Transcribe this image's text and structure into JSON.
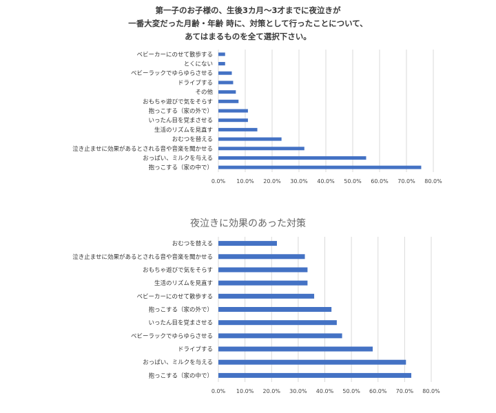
{
  "chart_data": [
    {
      "type": "bar",
      "orientation": "horizontal",
      "title_lines": [
        "第一子のお子様の、生後3カ月〜3才までに夜泣きが",
        "一番大変だった月齢・年齢 時に、対策として行ったことについて、",
        "あてはまるものを全て選択下さい。"
      ],
      "categories": [
        "ベビーカーにのせて散歩する",
        "とくにない",
        "ベビーラックでゆらゆらさせる",
        "ドライブする",
        "その他",
        "おもちゃ遊びで気をそらす",
        "抱っこする（家の外で）",
        "いったん目を覚まさせる",
        "生活のリズムを見直す",
        "おむつを替える",
        "泣き止ませに効果があるとされる音や音楽を聞かせる",
        "おっぱい、ミルクを与える",
        "抱っこする（家の中で）"
      ],
      "values": [
        2.5,
        2.5,
        5.0,
        5.5,
        6.5,
        7.5,
        11.0,
        11.0,
        14.5,
        23.5,
        32.0,
        55.0,
        75.5
      ],
      "xlim": [
        0,
        80
      ],
      "xticks": [
        "0.0%",
        "10.0%",
        "20.0%",
        "30.0%",
        "40.0%",
        "50.0%",
        "60.0%",
        "70.0%",
        "80.0%"
      ],
      "grid": true,
      "bar_color": "#4472C4"
    },
    {
      "type": "bar",
      "orientation": "horizontal",
      "title": "夜泣きに効果のあった対策",
      "categories": [
        "おむつを替える",
        "泣き止ませに効果があるとされる音や音楽を聞かせる",
        "おもちゃ遊びで気をそらす",
        "生活のリズムを見直す",
        "ベビーカーにのせて散歩する",
        "抱っこする（家の外で）",
        "いったん目を覚まさせる",
        "ベビーラックでゆらゆらさせる",
        "ドライブする",
        "おっぱい、ミルクを与える",
        "抱っこする（家の中で）"
      ],
      "values": [
        22.0,
        32.5,
        33.5,
        33.5,
        36.0,
        42.5,
        44.5,
        46.5,
        58.0,
        70.5,
        72.5
      ],
      "xlim": [
        0,
        80
      ],
      "xticks": [
        "0.0%",
        "10.0%",
        "20.0%",
        "30.0%",
        "40.0%",
        "50.0%",
        "60.0%",
        "70.0%",
        "80.0%"
      ],
      "grid": true,
      "bar_color": "#4472C4"
    }
  ]
}
